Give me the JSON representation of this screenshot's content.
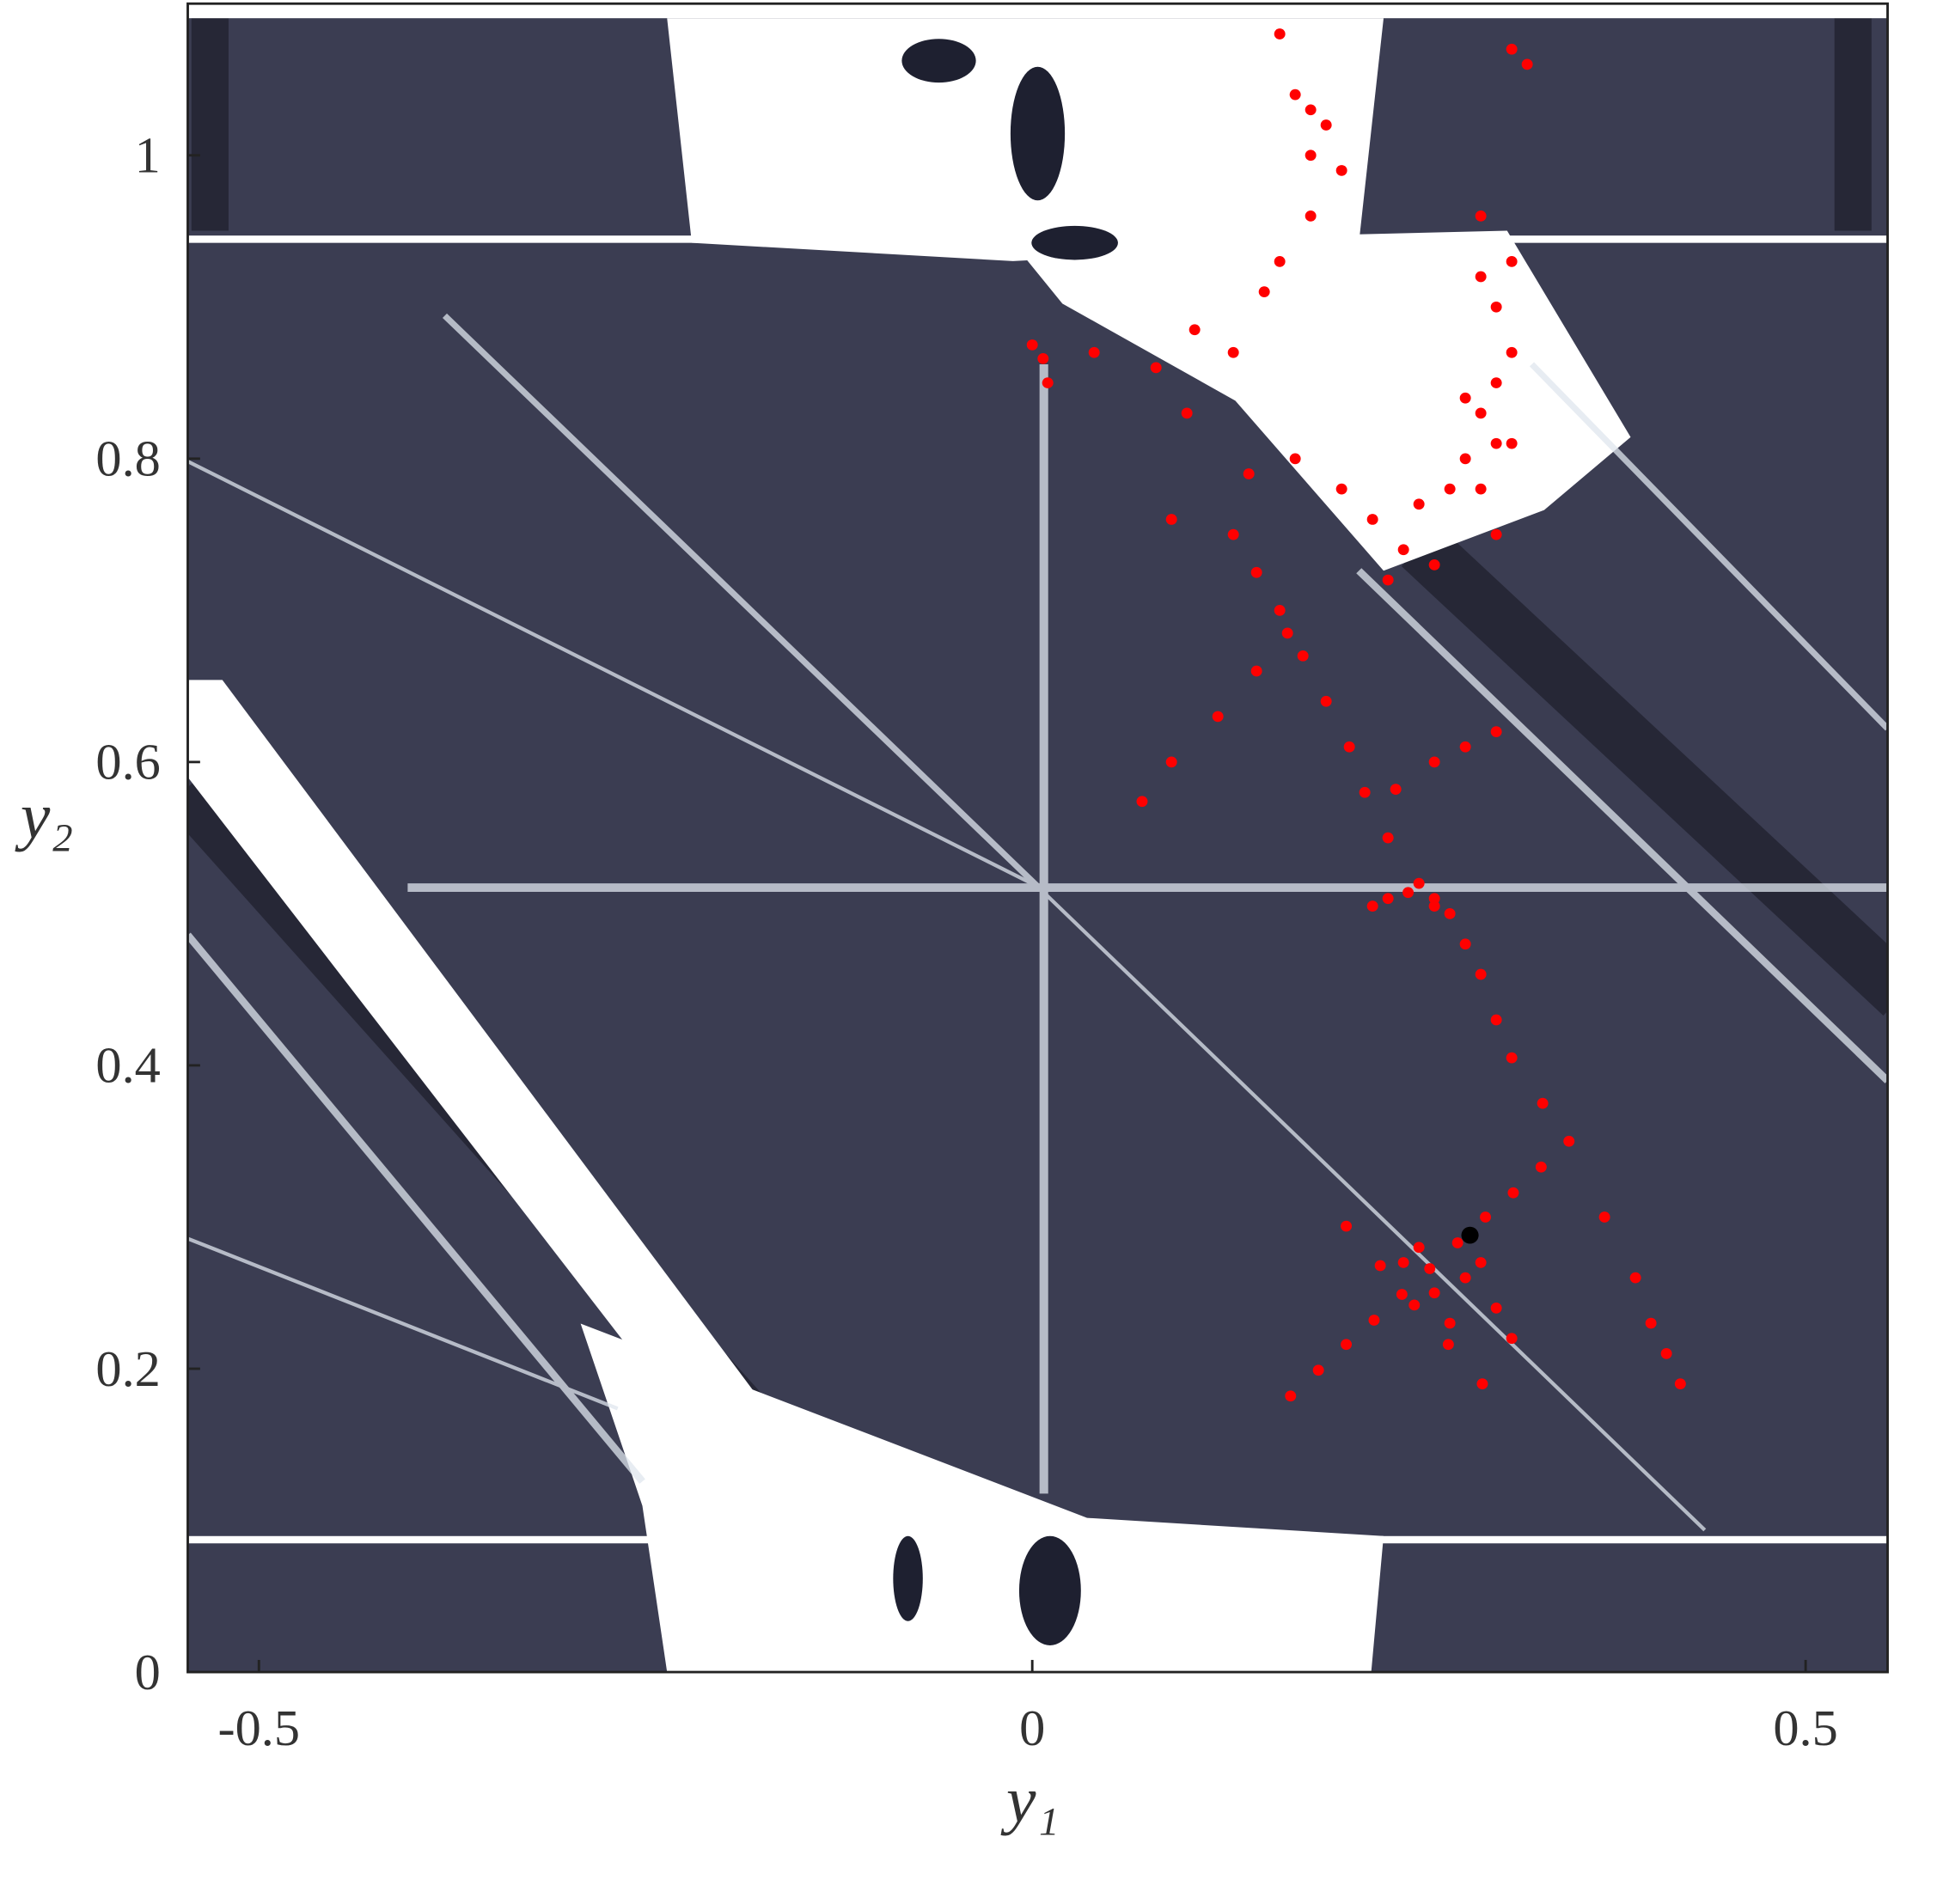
{
  "chart_data": {
    "type": "scatter",
    "x_label": "y₁",
    "y_label": "y₂",
    "xlim": [
      -0.546,
      0.553
    ],
    "ylim": [
      0,
      1.1
    ],
    "xticks": [
      -0.5,
      0,
      0.5
    ],
    "yticks": [
      0,
      0.2,
      0.4,
      0.6,
      0.8,
      1
    ],
    "series": [
      {
        "color": "#ff0000",
        "x": [
          0.167,
          0.185,
          0.203,
          0.221,
          0.239,
          0.257,
          0.275,
          0.293,
          0.311,
          0.329,
          0.347,
          0.203,
          0.225,
          0.247,
          0.269,
          0.291,
          0.24,
          0.26,
          0.28,
          0.3,
          0.27,
          0.25,
          0.31,
          0.29,
          0.33,
          0.31,
          0.3,
          0.29,
          0.28,
          0.27,
          0.26,
          0.243,
          0.23,
          0.26,
          0.25,
          0.22,
          0.23,
          0.215,
          0.205,
          0.19,
          0.175,
          0.16,
          0.145,
          0.13,
          0.071,
          0.09,
          0.12,
          0.145,
          0.165,
          0.235,
          0.26,
          0.28,
          0.3,
          0.37,
          0.39,
          0.4,
          0.41,
          0.419,
          0.007,
          0.0,
          0.01,
          0.04,
          0.08,
          0.1,
          0.105,
          0.13,
          0.15,
          0.16,
          0.18,
          0.17,
          0.14,
          0.09,
          0.16,
          0.17,
          0.18,
          0.19,
          0.2,
          0.18,
          0.2,
          0.22,
          0.24,
          0.26,
          0.23,
          0.25,
          0.27,
          0.28,
          0.29,
          0.3,
          0.31,
          0.29,
          0.3,
          0.28,
          0.31,
          0.3,
          0.31,
          0.29,
          0.31,
          0.32,
          0.29,
          0.3
        ],
        "values": [
          0.182,
          0.199,
          0.216,
          0.232,
          0.249,
          0.266,
          0.283,
          0.3,
          0.316,
          0.333,
          0.35,
          0.294,
          0.268,
          0.242,
          0.216,
          0.19,
          0.27,
          0.25,
          0.26,
          0.24,
          0.23,
          0.28,
          0.22,
          0.27,
          0.375,
          0.405,
          0.43,
          0.46,
          0.48,
          0.5,
          0.51,
          0.514,
          0.51,
          0.505,
          0.52,
          0.505,
          0.55,
          0.58,
          0.61,
          0.64,
          0.67,
          0.7,
          0.725,
          0.75,
          0.574,
          0.6,
          0.63,
          0.66,
          0.685,
          0.582,
          0.6,
          0.61,
          0.62,
          0.3,
          0.26,
          0.23,
          0.21,
          0.19,
          0.866,
          0.875,
          0.85,
          0.87,
          0.86,
          0.83,
          0.885,
          0.87,
          0.91,
          0.93,
          0.96,
          0.8,
          0.79,
          0.76,
          1.08,
          1.04,
          1.0,
          1.02,
          0.99,
          1.03,
          0.78,
          0.76,
          0.74,
          0.73,
          0.72,
          0.77,
          0.78,
          0.8,
          0.83,
          0.85,
          0.87,
          0.78,
          0.81,
          0.84,
          0.81,
          0.9,
          0.93,
          0.92,
          1.07,
          1.06,
          0.96,
          0.75
        ]
      },
      {
        "color": "#000000",
        "x": [
          0.283
        ],
        "values": [
          0.288
        ]
      }
    ]
  }
}
